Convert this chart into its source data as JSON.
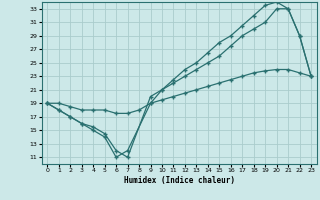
{
  "xlabel": "Humidex (Indice chaleur)",
  "bg_color": "#cce8e8",
  "grid_color": "#aacccc",
  "line_color": "#2a7070",
  "xlim": [
    -0.5,
    23.5
  ],
  "ylim": [
    10,
    34
  ],
  "xticks": [
    0,
    1,
    2,
    3,
    4,
    5,
    6,
    7,
    8,
    9,
    10,
    11,
    12,
    13,
    14,
    15,
    16,
    17,
    18,
    19,
    20,
    21,
    22,
    23
  ],
  "yticks": [
    11,
    13,
    15,
    17,
    19,
    21,
    23,
    25,
    27,
    29,
    31,
    33
  ],
  "line1_x": [
    0,
    1,
    2,
    3,
    4,
    5,
    6,
    7,
    9,
    10,
    11,
    12,
    13,
    14,
    15,
    16,
    17,
    18,
    19,
    20,
    21,
    22,
    23
  ],
  "line1_y": [
    19,
    18,
    17,
    16,
    15,
    14,
    11,
    12,
    19,
    21,
    22,
    23,
    24,
    25,
    26,
    27.5,
    29,
    30,
    31,
    33,
    33,
    29,
    23
  ],
  "line2_x": [
    0,
    1,
    2,
    3,
    4,
    5,
    6,
    7,
    9,
    10,
    11,
    12,
    13,
    14,
    15,
    16,
    17,
    18,
    19,
    20,
    21,
    22,
    23
  ],
  "line2_y": [
    19,
    18,
    17,
    16,
    15.5,
    14.5,
    12,
    11,
    20,
    21,
    22.5,
    24,
    25,
    26.5,
    28,
    29,
    30.5,
    32,
    33.5,
    34,
    33,
    29,
    23
  ],
  "line3_x": [
    0,
    1,
    2,
    3,
    4,
    5,
    6,
    7,
    8,
    9,
    10,
    11,
    12,
    13,
    14,
    15,
    16,
    17,
    18,
    19,
    20,
    21,
    22,
    23
  ],
  "line3_y": [
    19,
    19,
    18.5,
    18,
    18,
    18,
    17.5,
    17.5,
    18,
    19,
    19.5,
    20,
    20.5,
    21,
    21.5,
    22,
    22.5,
    23,
    23.5,
    23.8,
    24,
    24,
    23.5,
    23
  ]
}
